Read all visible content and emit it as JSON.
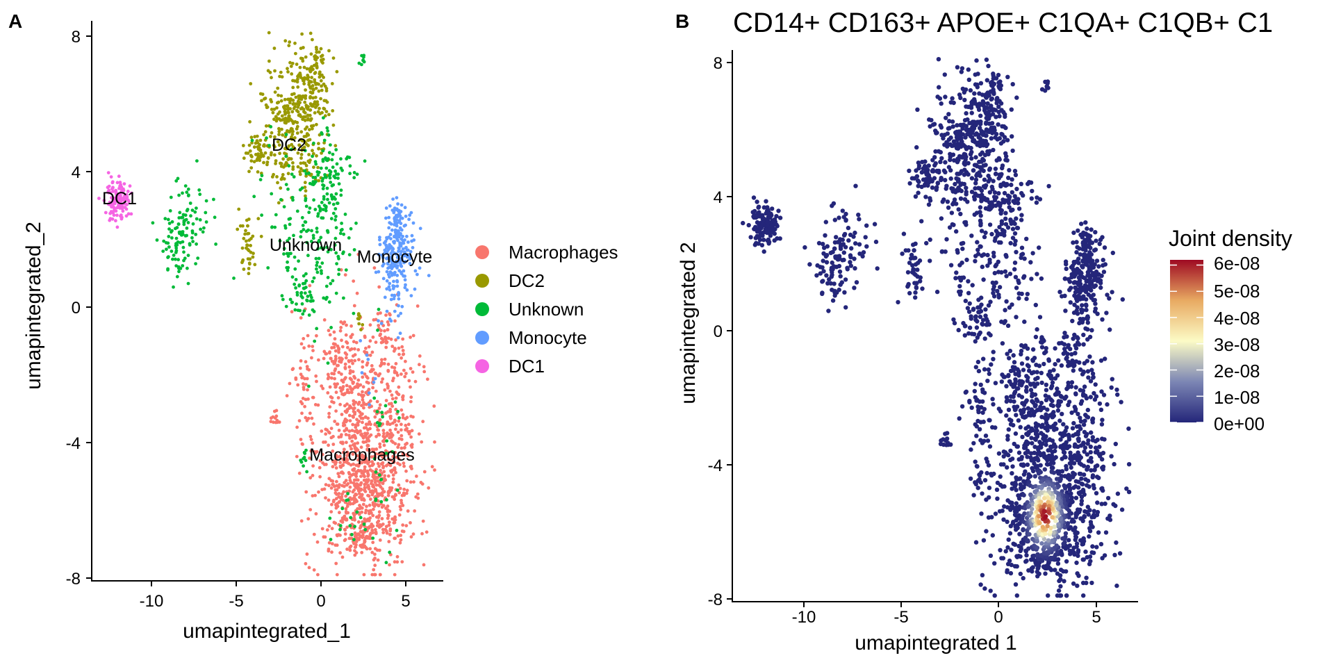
{
  "panel_a": {
    "tag": "A",
    "xlabel": "umapintegrated_1",
    "ylabel": "umapintegrated_2",
    "x_ticks": [
      "-10",
      "-5",
      "0",
      "5"
    ],
    "y_ticks": [
      "8",
      "4",
      "0",
      "-4",
      "-8"
    ],
    "legend": [
      "Macrophages",
      "DC2",
      "Unknown",
      "Monocyte",
      "DC1"
    ],
    "cluster_labels": [
      "DC2",
      "DC1",
      "Unknown",
      "Monocyte",
      "Macrophages"
    ]
  },
  "panel_b": {
    "tag": "B",
    "title": "CD14+ CD163+ APOE+ C1QA+ C1QB+ C1",
    "xlabel": "umapintegrated 1",
    "ylabel": "umapintegrated 2",
    "x_ticks": [
      "-10",
      "-5",
      "0",
      "5"
    ],
    "y_ticks": [
      "8",
      "4",
      "0",
      "-4",
      "-8"
    ],
    "legend_title": "Joint density",
    "legend_ticks": [
      "6e-08",
      "5e-08",
      "4e-08",
      "3e-08",
      "2e-08",
      "1e-08",
      "0e+00"
    ]
  },
  "chart_data": [
    {
      "type": "scatter",
      "panel": "A",
      "xlabel": "umapintegrated_1",
      "ylabel": "umapintegrated_2",
      "xlim": [
        -13.6,
        7.2
      ],
      "ylim": [
        -8.1,
        8.4
      ],
      "x_ticks": [
        -10,
        -5,
        0,
        5
      ],
      "y_ticks": [
        8,
        4,
        0,
        -4,
        -8
      ],
      "grid": false,
      "legend_position": "right",
      "series": [
        {
          "name": "Macrophages",
          "color": "#F8766D",
          "clusters": [
            {
              "cx": 2.5,
              "cy": -5.4,
              "sx": 1.5,
              "sy": 1.1,
              "n": 700
            },
            {
              "cx": 2.5,
              "cy": -2.8,
              "sx": 1.3,
              "sy": 1.4,
              "n": 340
            },
            {
              "cx": 4.6,
              "cy": -3.0,
              "sx": 0.7,
              "sy": 1.0,
              "n": 80
            },
            {
              "cx": 1.3,
              "cy": -1.7,
              "sx": 0.5,
              "sy": 0.8,
              "n": 70
            },
            {
              "cx": -0.9,
              "cy": -2.2,
              "sx": 0.5,
              "sy": 1.0,
              "n": 60
            },
            {
              "cx": 3.8,
              "cy": -0.6,
              "sx": 0.3,
              "sy": 0.5,
              "n": 30
            },
            {
              "cx": -2.7,
              "cy": -3.3,
              "sx": 0.15,
              "sy": 0.15,
              "n": 12
            },
            {
              "cx": 2.3,
              "cy": -6.8,
              "sx": 0.35,
              "sy": 0.3,
              "n": 40
            }
          ]
        },
        {
          "name": "DC2",
          "color": "#999900",
          "clusters": [
            {
              "cx": -1.5,
              "cy": 5.3,
              "sx": 1.0,
              "sy": 1.0,
              "n": 330
            },
            {
              "cx": -0.5,
              "cy": 6.7,
              "sx": 0.5,
              "sy": 0.5,
              "n": 90
            },
            {
              "cx": -3.6,
              "cy": 4.6,
              "sx": 0.5,
              "sy": 0.25,
              "n": 60
            },
            {
              "cx": -4.3,
              "cy": 2.0,
              "sx": 0.25,
              "sy": 0.5,
              "n": 40
            },
            {
              "cx": -0.2,
              "cy": 7.4,
              "sx": 0.15,
              "sy": 0.2,
              "n": 15
            },
            {
              "cx": 2.3,
              "cy": -0.4,
              "sx": 0.1,
              "sy": 0.2,
              "n": 8
            }
          ]
        },
        {
          "name": "Unknown",
          "color": "#00BA38",
          "clusters": [
            {
              "cx": -0.3,
              "cy": 2.3,
              "sx": 1.4,
              "sy": 1.5,
              "n": 220
            },
            {
              "cx": -7.8,
              "cy": 2.3,
              "sx": 0.7,
              "sy": 0.6,
              "n": 80
            },
            {
              "cx": -8.6,
              "cy": 1.7,
              "sx": 0.4,
              "sy": 0.5,
              "n": 40
            },
            {
              "cx": 0.7,
              "cy": 3.9,
              "sx": 0.5,
              "sy": 0.5,
              "n": 50
            },
            {
              "cx": -1.1,
              "cy": 0.2,
              "sx": 0.4,
              "sy": 0.3,
              "n": 30
            },
            {
              "cx": 2.4,
              "cy": 7.3,
              "sx": 0.1,
              "sy": 0.12,
              "n": 8
            },
            {
              "cx": 3.8,
              "cy": -4.5,
              "sx": 0.4,
              "sy": 1.0,
              "n": 25
            },
            {
              "cx": -1.0,
              "cy": -4.4,
              "sx": 0.2,
              "sy": 0.2,
              "n": 10
            },
            {
              "cx": 1.9,
              "cy": -6.2,
              "sx": 0.6,
              "sy": 0.4,
              "n": 20
            }
          ]
        },
        {
          "name": "Monocyte",
          "color": "#619CFF",
          "clusters": [
            {
              "cx": 4.5,
              "cy": 1.7,
              "sx": 0.55,
              "sy": 0.6,
              "n": 170
            },
            {
              "cx": 4.4,
              "cy": 0.4,
              "sx": 0.3,
              "sy": 0.5,
              "n": 40
            },
            {
              "cx": 4.5,
              "cy": 2.7,
              "sx": 0.35,
              "sy": 0.25,
              "n": 30
            },
            {
              "cx": 3.0,
              "cy": -1.8,
              "sx": 0.5,
              "sy": 0.8,
              "n": 10
            }
          ]
        },
        {
          "name": "DC1",
          "color": "#F564E3",
          "clusters": [
            {
              "cx": -12.0,
              "cy": 3.2,
              "sx": 0.35,
              "sy": 0.3,
              "n": 130
            }
          ]
        }
      ]
    },
    {
      "type": "scatter",
      "panel": "B",
      "title": "CD14+ CD163+ APOE+ C1QA+ C1QB+ C1",
      "xlabel": "umapintegrated 1",
      "ylabel": "umapintegrated 2",
      "xlim": [
        -13.7,
        7.2
      ],
      "ylim": [
        -8.1,
        8.4
      ],
      "x_ticks": [
        -10,
        -5,
        0,
        5
      ],
      "y_ticks": [
        8,
        4,
        0,
        -4,
        -8
      ],
      "grid": false,
      "legend_position": "right",
      "legend_title": "Joint density",
      "color_scale": {
        "min": 0,
        "max": 6.2e-08,
        "ticks": [
          "0e+00",
          "1e-08",
          "2e-08",
          "3e-08",
          "4e-08",
          "5e-08",
          "6e-08"
        ],
        "tick_values": [
          0,
          1e-08,
          2e-08,
          3e-08,
          4e-08,
          5e-08,
          6e-08
        ],
        "colors": [
          "#24267A",
          "#7C86B4",
          "#FCFBC6",
          "#E8AA62",
          "#9E0A22"
        ]
      },
      "base_color": "#24267A",
      "density_peak": {
        "x": 2.4,
        "y": -5.5,
        "sx": 0.45,
        "sy": 0.5,
        "max": 6.2e-08
      }
    }
  ]
}
